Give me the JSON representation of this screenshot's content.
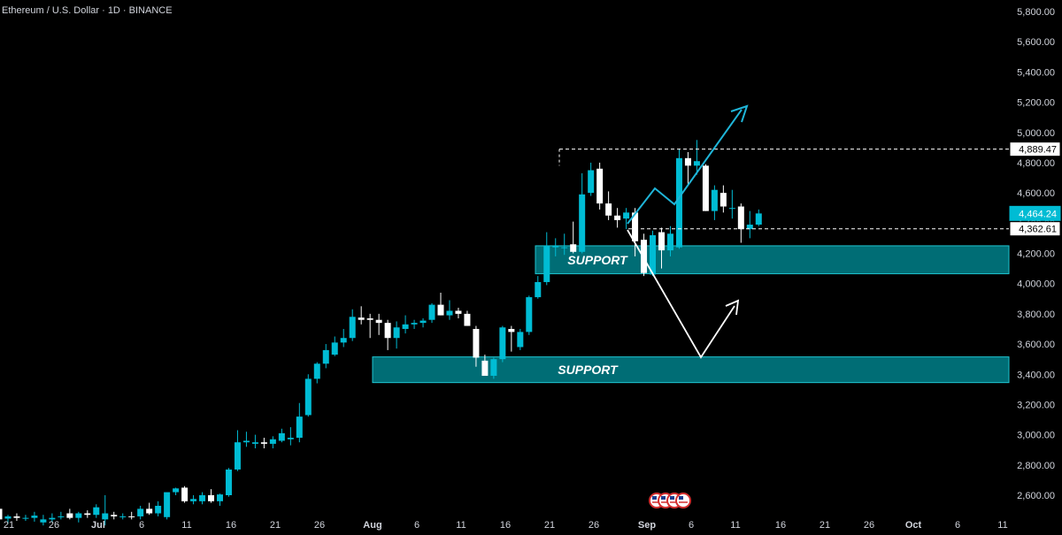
{
  "header": {
    "title": "Ethereum / U.S. Dollar · 1D · BINANCE"
  },
  "colors": {
    "background": "#000000",
    "up": "#00bcd4",
    "down": "#ffffff",
    "support_fill": "#006d75",
    "support_border": "#1fc4cf",
    "up_arrow": "#1fb5d8",
    "down_arrow": "#ffffff",
    "dashed_line": "#ffffff",
    "current_price_bg": "#00bcd4"
  },
  "chart_data": {
    "type": "candlestick",
    "title": "Ethereum / U.S. Dollar · 1D · BINANCE",
    "ylim": [
      2460,
      5880
    ],
    "y_ticks": [
      "5,800.00",
      "5,600.00",
      "5,400.00",
      "5,200.00",
      "5,000.00",
      "4,800.00",
      "4,600.00",
      "4,400.00",
      "4,200.00",
      "4,000.00",
      "3,800.00",
      "3,600.00",
      "3,400.00",
      "3,200.00",
      "3,000.00",
      "2,800.00",
      "2,600.00"
    ],
    "x_ticks": [
      "21",
      "26",
      "Jul",
      "6",
      "11",
      "16",
      "21",
      "26",
      "Aug",
      "6",
      "11",
      "16",
      "21",
      "26",
      "Sep",
      "6",
      "11",
      "16",
      "21",
      "26",
      "Oct",
      "6",
      "11"
    ],
    "price_labels": {
      "resistance": "4,889.47",
      "current": "4,464.24",
      "support_line": "4,362.61"
    },
    "support_zones": [
      {
        "label": "SUPPORT",
        "from": 4065,
        "to": 4250
      },
      {
        "label": "SUPPORT",
        "from": 3345,
        "to": 3515
      }
    ],
    "candles": [
      {
        "o": 2510,
        "h": 2530,
        "l": 2450,
        "c": 2440
      },
      {
        "o": 2445,
        "h": 2470,
        "l": 2410,
        "c": 2460
      },
      {
        "o": 2460,
        "h": 2480,
        "l": 2430,
        "c": 2450
      },
      {
        "o": 2450,
        "h": 2470,
        "l": 2430,
        "c": 2450
      },
      {
        "o": 2450,
        "h": 2490,
        "l": 2425,
        "c": 2465
      },
      {
        "o": 2420,
        "h": 2470,
        "l": 2400,
        "c": 2440
      },
      {
        "o": 2440,
        "h": 2480,
        "l": 2420,
        "c": 2450
      },
      {
        "o": 2455,
        "h": 2490,
        "l": 2440,
        "c": 2460
      },
      {
        "o": 2480,
        "h": 2510,
        "l": 2440,
        "c": 2450
      },
      {
        "o": 2450,
        "h": 2490,
        "l": 2420,
        "c": 2480
      },
      {
        "o": 2480,
        "h": 2500,
        "l": 2450,
        "c": 2470
      },
      {
        "o": 2470,
        "h": 2540,
        "l": 2450,
        "c": 2520
      },
      {
        "o": 2440,
        "h": 2600,
        "l": 2400,
        "c": 2480
      },
      {
        "o": 2470,
        "h": 2490,
        "l": 2440,
        "c": 2460
      },
      {
        "o": 2460,
        "h": 2480,
        "l": 2440,
        "c": 2460
      },
      {
        "o": 2460,
        "h": 2490,
        "l": 2440,
        "c": 2455
      },
      {
        "o": 2460,
        "h": 2530,
        "l": 2440,
        "c": 2510
      },
      {
        "o": 2510,
        "h": 2550,
        "l": 2470,
        "c": 2480
      },
      {
        "o": 2480,
        "h": 2560,
        "l": 2460,
        "c": 2530
      },
      {
        "o": 2455,
        "h": 2600,
        "l": 2440,
        "c": 2620
      },
      {
        "o": 2620,
        "h": 2650,
        "l": 2600,
        "c": 2645
      },
      {
        "o": 2650,
        "h": 2660,
        "l": 2550,
        "c": 2560
      },
      {
        "o": 2560,
        "h": 2600,
        "l": 2540,
        "c": 2575
      },
      {
        "o": 2560,
        "h": 2620,
        "l": 2540,
        "c": 2600
      },
      {
        "o": 2600,
        "h": 2640,
        "l": 2550,
        "c": 2560
      },
      {
        "o": 2560,
        "h": 2610,
        "l": 2530,
        "c": 2605
      },
      {
        "o": 2600,
        "h": 2780,
        "l": 2590,
        "c": 2770
      },
      {
        "o": 2770,
        "h": 3030,
        "l": 2760,
        "c": 2950
      },
      {
        "o": 2950,
        "h": 3020,
        "l": 2920,
        "c": 2960
      },
      {
        "o": 2940,
        "h": 3000,
        "l": 2910,
        "c": 2950
      },
      {
        "o": 2950,
        "h": 2980,
        "l": 2910,
        "c": 2940
      },
      {
        "o": 2940,
        "h": 2990,
        "l": 2910,
        "c": 2970
      },
      {
        "o": 2960,
        "h": 3040,
        "l": 2950,
        "c": 3010
      },
      {
        "o": 2970,
        "h": 3050,
        "l": 2930,
        "c": 2980
      },
      {
        "o": 2980,
        "h": 3210,
        "l": 2950,
        "c": 3120
      },
      {
        "o": 3130,
        "h": 3400,
        "l": 3120,
        "c": 3370
      },
      {
        "o": 3370,
        "h": 3480,
        "l": 3340,
        "c": 3470
      },
      {
        "o": 3470,
        "h": 3600,
        "l": 3440,
        "c": 3560
      },
      {
        "o": 3530,
        "h": 3650,
        "l": 3520,
        "c": 3610
      },
      {
        "o": 3610,
        "h": 3700,
        "l": 3580,
        "c": 3640
      },
      {
        "o": 3640,
        "h": 3830,
        "l": 3620,
        "c": 3780
      },
      {
        "o": 3775,
        "h": 3850,
        "l": 3730,
        "c": 3760
      },
      {
        "o": 3770,
        "h": 3800,
        "l": 3640,
        "c": 3760
      },
      {
        "o": 3760,
        "h": 3800,
        "l": 3660,
        "c": 3740
      },
      {
        "o": 3740,
        "h": 3760,
        "l": 3560,
        "c": 3640
      },
      {
        "o": 3640,
        "h": 3750,
        "l": 3570,
        "c": 3710
      },
      {
        "o": 3700,
        "h": 3790,
        "l": 3670,
        "c": 3730
      },
      {
        "o": 3730,
        "h": 3760,
        "l": 3700,
        "c": 3740
      },
      {
        "o": 3740,
        "h": 3770,
        "l": 3710,
        "c": 3755
      },
      {
        "o": 3760,
        "h": 3870,
        "l": 3740,
        "c": 3860
      },
      {
        "o": 3860,
        "h": 3940,
        "l": 3790,
        "c": 3790
      },
      {
        "o": 3790,
        "h": 3890,
        "l": 3760,
        "c": 3820
      },
      {
        "o": 3820,
        "h": 3840,
        "l": 3770,
        "c": 3800
      },
      {
        "o": 3800,
        "h": 3820,
        "l": 3720,
        "c": 3720
      },
      {
        "o": 3700,
        "h": 3720,
        "l": 3450,
        "c": 3510
      },
      {
        "o": 3490,
        "h": 3530,
        "l": 3400,
        "c": 3390
      },
      {
        "o": 3390,
        "h": 3510,
        "l": 3370,
        "c": 3500
      },
      {
        "o": 3500,
        "h": 3720,
        "l": 3480,
        "c": 3710
      },
      {
        "o": 3700,
        "h": 3720,
        "l": 3550,
        "c": 3680
      },
      {
        "o": 3580,
        "h": 3700,
        "l": 3560,
        "c": 3680
      },
      {
        "o": 3680,
        "h": 3920,
        "l": 3660,
        "c": 3910
      },
      {
        "o": 3910,
        "h": 4050,
        "l": 3900,
        "c": 4010
      },
      {
        "o": 4010,
        "h": 4340,
        "l": 3990,
        "c": 4250
      },
      {
        "o": 4240,
        "h": 4300,
        "l": 4180,
        "c": 4250
      },
      {
        "o": 4240,
        "h": 4330,
        "l": 4190,
        "c": 4240
      },
      {
        "o": 4260,
        "h": 4410,
        "l": 4200,
        "c": 4210
      },
      {
        "o": 4210,
        "h": 4730,
        "l": 4200,
        "c": 4590
      },
      {
        "o": 4600,
        "h": 4800,
        "l": 4580,
        "c": 4750
      },
      {
        "o": 4760,
        "h": 4800,
        "l": 4490,
        "c": 4530
      },
      {
        "o": 4530,
        "h": 4610,
        "l": 4420,
        "c": 4450
      },
      {
        "o": 4450,
        "h": 4500,
        "l": 4370,
        "c": 4420
      },
      {
        "o": 4430,
        "h": 4500,
        "l": 4360,
        "c": 4470
      },
      {
        "o": 4470,
        "h": 4500,
        "l": 4180,
        "c": 4280
      },
      {
        "o": 4290,
        "h": 4330,
        "l": 4050,
        "c": 4070
      },
      {
        "o": 4060,
        "h": 4350,
        "l": 4050,
        "c": 4320
      },
      {
        "o": 4340,
        "h": 4370,
        "l": 4100,
        "c": 4220
      },
      {
        "o": 4220,
        "h": 4380,
        "l": 4180,
        "c": 4330
      },
      {
        "o": 4240,
        "h": 4890,
        "l": 4230,
        "c": 4830
      },
      {
        "o": 4830,
        "h": 4870,
        "l": 4650,
        "c": 4780
      },
      {
        "o": 4780,
        "h": 4950,
        "l": 4720,
        "c": 4810
      },
      {
        "o": 4780,
        "h": 4790,
        "l": 4480,
        "c": 4480
      },
      {
        "o": 4480,
        "h": 4650,
        "l": 4420,
        "c": 4620
      },
      {
        "o": 4600,
        "h": 4650,
        "l": 4470,
        "c": 4510
      },
      {
        "o": 4500,
        "h": 4620,
        "l": 4430,
        "c": 4500
      },
      {
        "o": 4510,
        "h": 4530,
        "l": 4270,
        "c": 4360
      },
      {
        "o": 4360,
        "h": 4480,
        "l": 4300,
        "c": 4390
      },
      {
        "o": 4390,
        "h": 4490,
        "l": 4380,
        "c": 4464
      }
    ]
  }
}
